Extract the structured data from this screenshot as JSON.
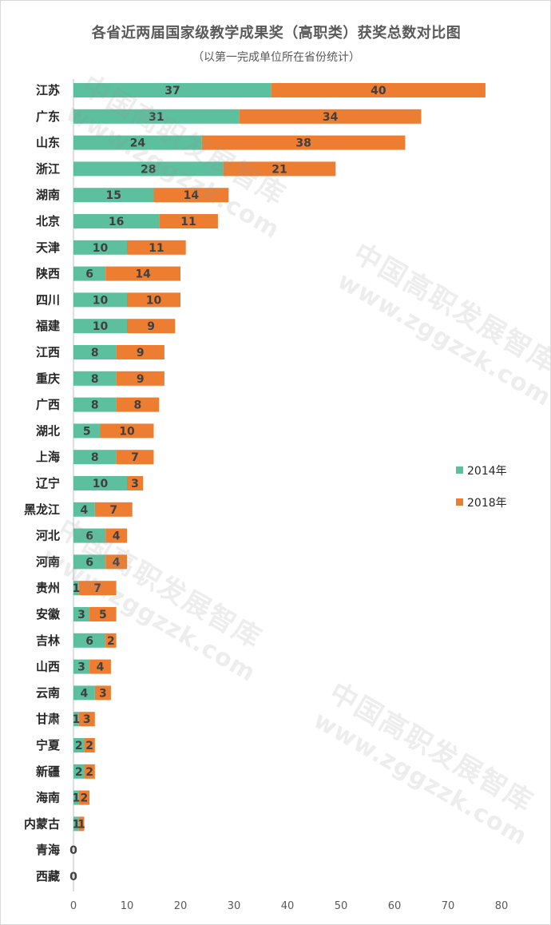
{
  "chart_data": {
    "type": "bar",
    "orientation": "horizontal",
    "stacked": true,
    "title": "各省近两届国家级教学成果奖（高职类）获奖总数对比图",
    "subtitle": "（以第一完成单位所在省份统计）",
    "categories": [
      "江苏",
      "广东",
      "山东",
      "浙江",
      "湖南",
      "北京",
      "天津",
      "陕西",
      "四川",
      "福建",
      "江西",
      "重庆",
      "广西",
      "湖北",
      "上海",
      "辽宁",
      "黑龙江",
      "河北",
      "河南",
      "贵州",
      "安徽",
      "吉林",
      "山西",
      "云南",
      "甘肃",
      "宁夏",
      "新疆",
      "海南",
      "内蒙古",
      "青海",
      "西藏"
    ],
    "series": [
      {
        "name": "2014年",
        "color": "#5cc09e",
        "values": [
          37,
          31,
          24,
          28,
          15,
          16,
          10,
          6,
          10,
          10,
          8,
          8,
          8,
          5,
          8,
          10,
          4,
          6,
          6,
          1,
          3,
          6,
          3,
          4,
          1,
          2,
          2,
          1,
          1,
          0,
          0
        ]
      },
      {
        "name": "2018年",
        "color": "#ed7d31",
        "values": [
          40,
          34,
          38,
          21,
          14,
          11,
          11,
          14,
          10,
          9,
          9,
          9,
          8,
          10,
          7,
          3,
          7,
          4,
          4,
          7,
          5,
          2,
          4,
          3,
          3,
          2,
          2,
          2,
          1,
          0,
          0
        ]
      }
    ],
    "xlim": [
      0,
      80
    ],
    "xticks": [
      0,
      10,
      20,
      30,
      40,
      50,
      60,
      70,
      80
    ],
    "legend_position": "right",
    "grid": false
  },
  "watermark": {
    "cn": "中国高职发展智库",
    "url": "www.zggzzk.com"
  }
}
